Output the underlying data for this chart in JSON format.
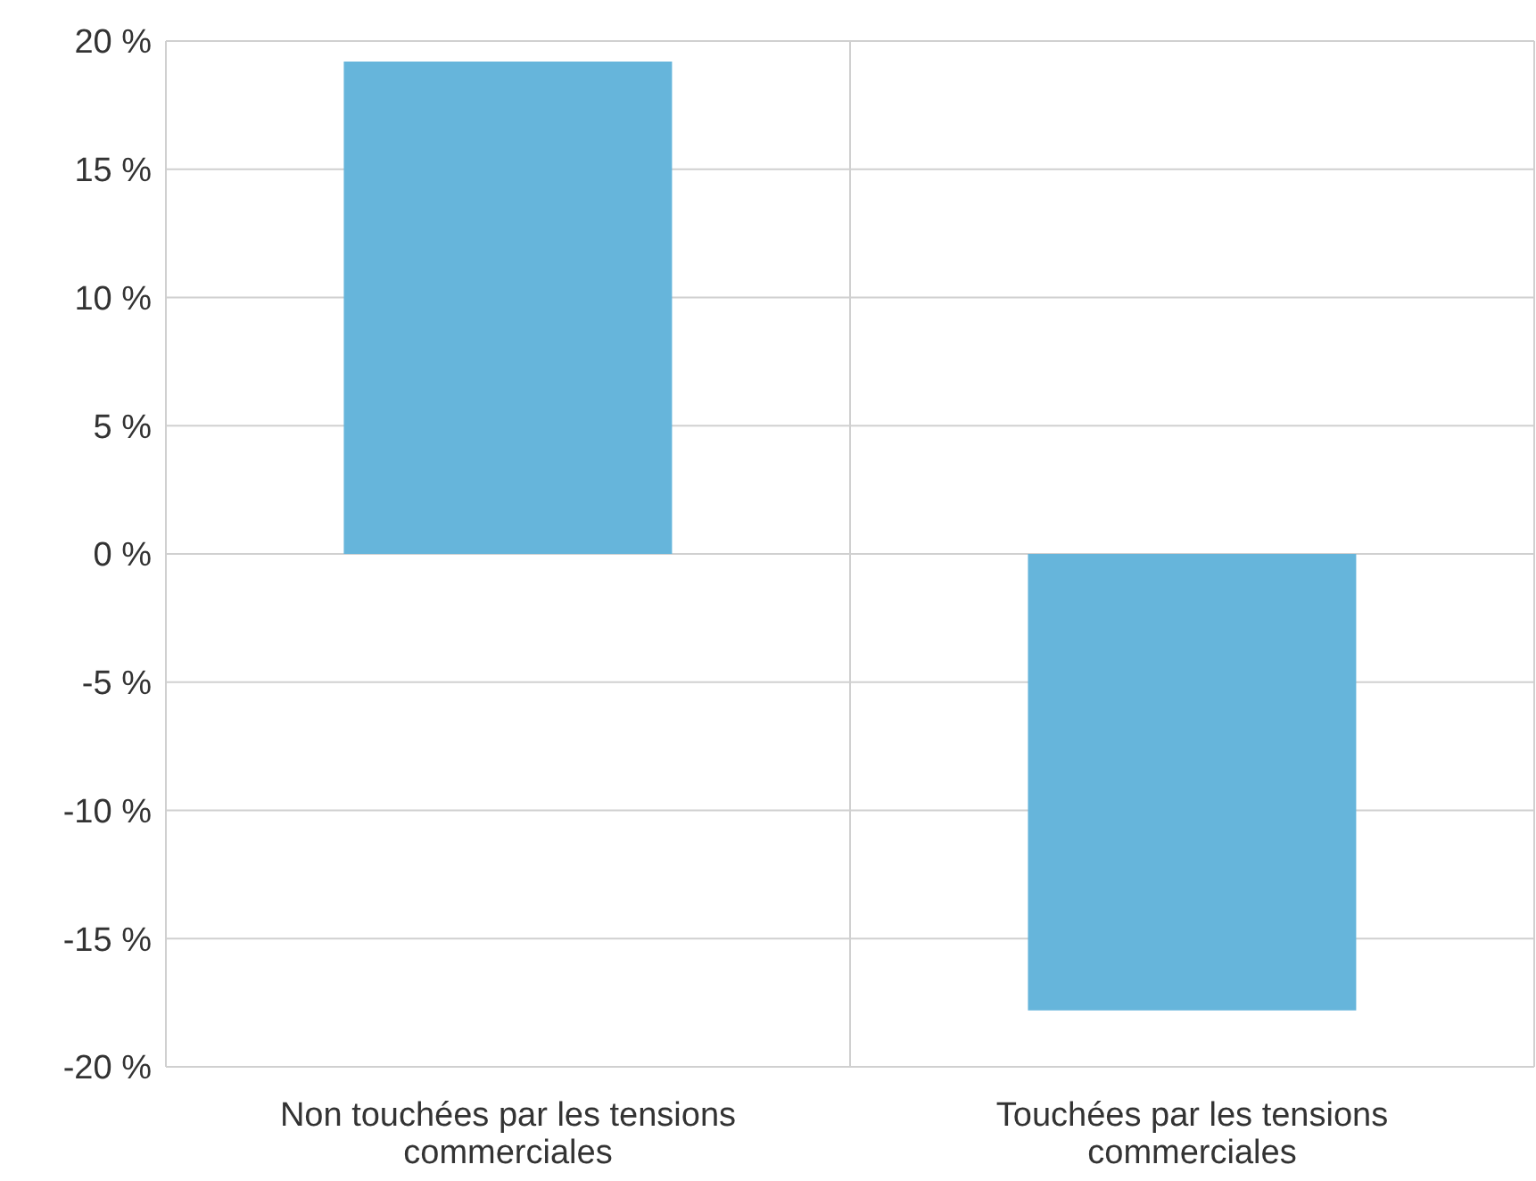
{
  "chart_data": {
    "type": "bar",
    "categories": [
      "Non touchées par les tensions commerciales",
      "Touchées par les tensions commerciales"
    ],
    "values": [
      19.2,
      -17.8
    ],
    "color": "#66b5db",
    "ylim": [
      -20,
      20
    ],
    "yticks": [
      {
        "value": -20,
        "label": "-20 %"
      },
      {
        "value": -15,
        "label": "-15 %"
      },
      {
        "value": -10,
        "label": "-10 %"
      },
      {
        "value": -5,
        "label": "-5 %"
      },
      {
        "value": 0,
        "label": "0 %"
      },
      {
        "value": 5,
        "label": "5 %"
      },
      {
        "value": 10,
        "label": "10 %"
      },
      {
        "value": 15,
        "label": "15 %"
      },
      {
        "value": 20,
        "label": "20 %"
      }
    ],
    "grid": true
  }
}
